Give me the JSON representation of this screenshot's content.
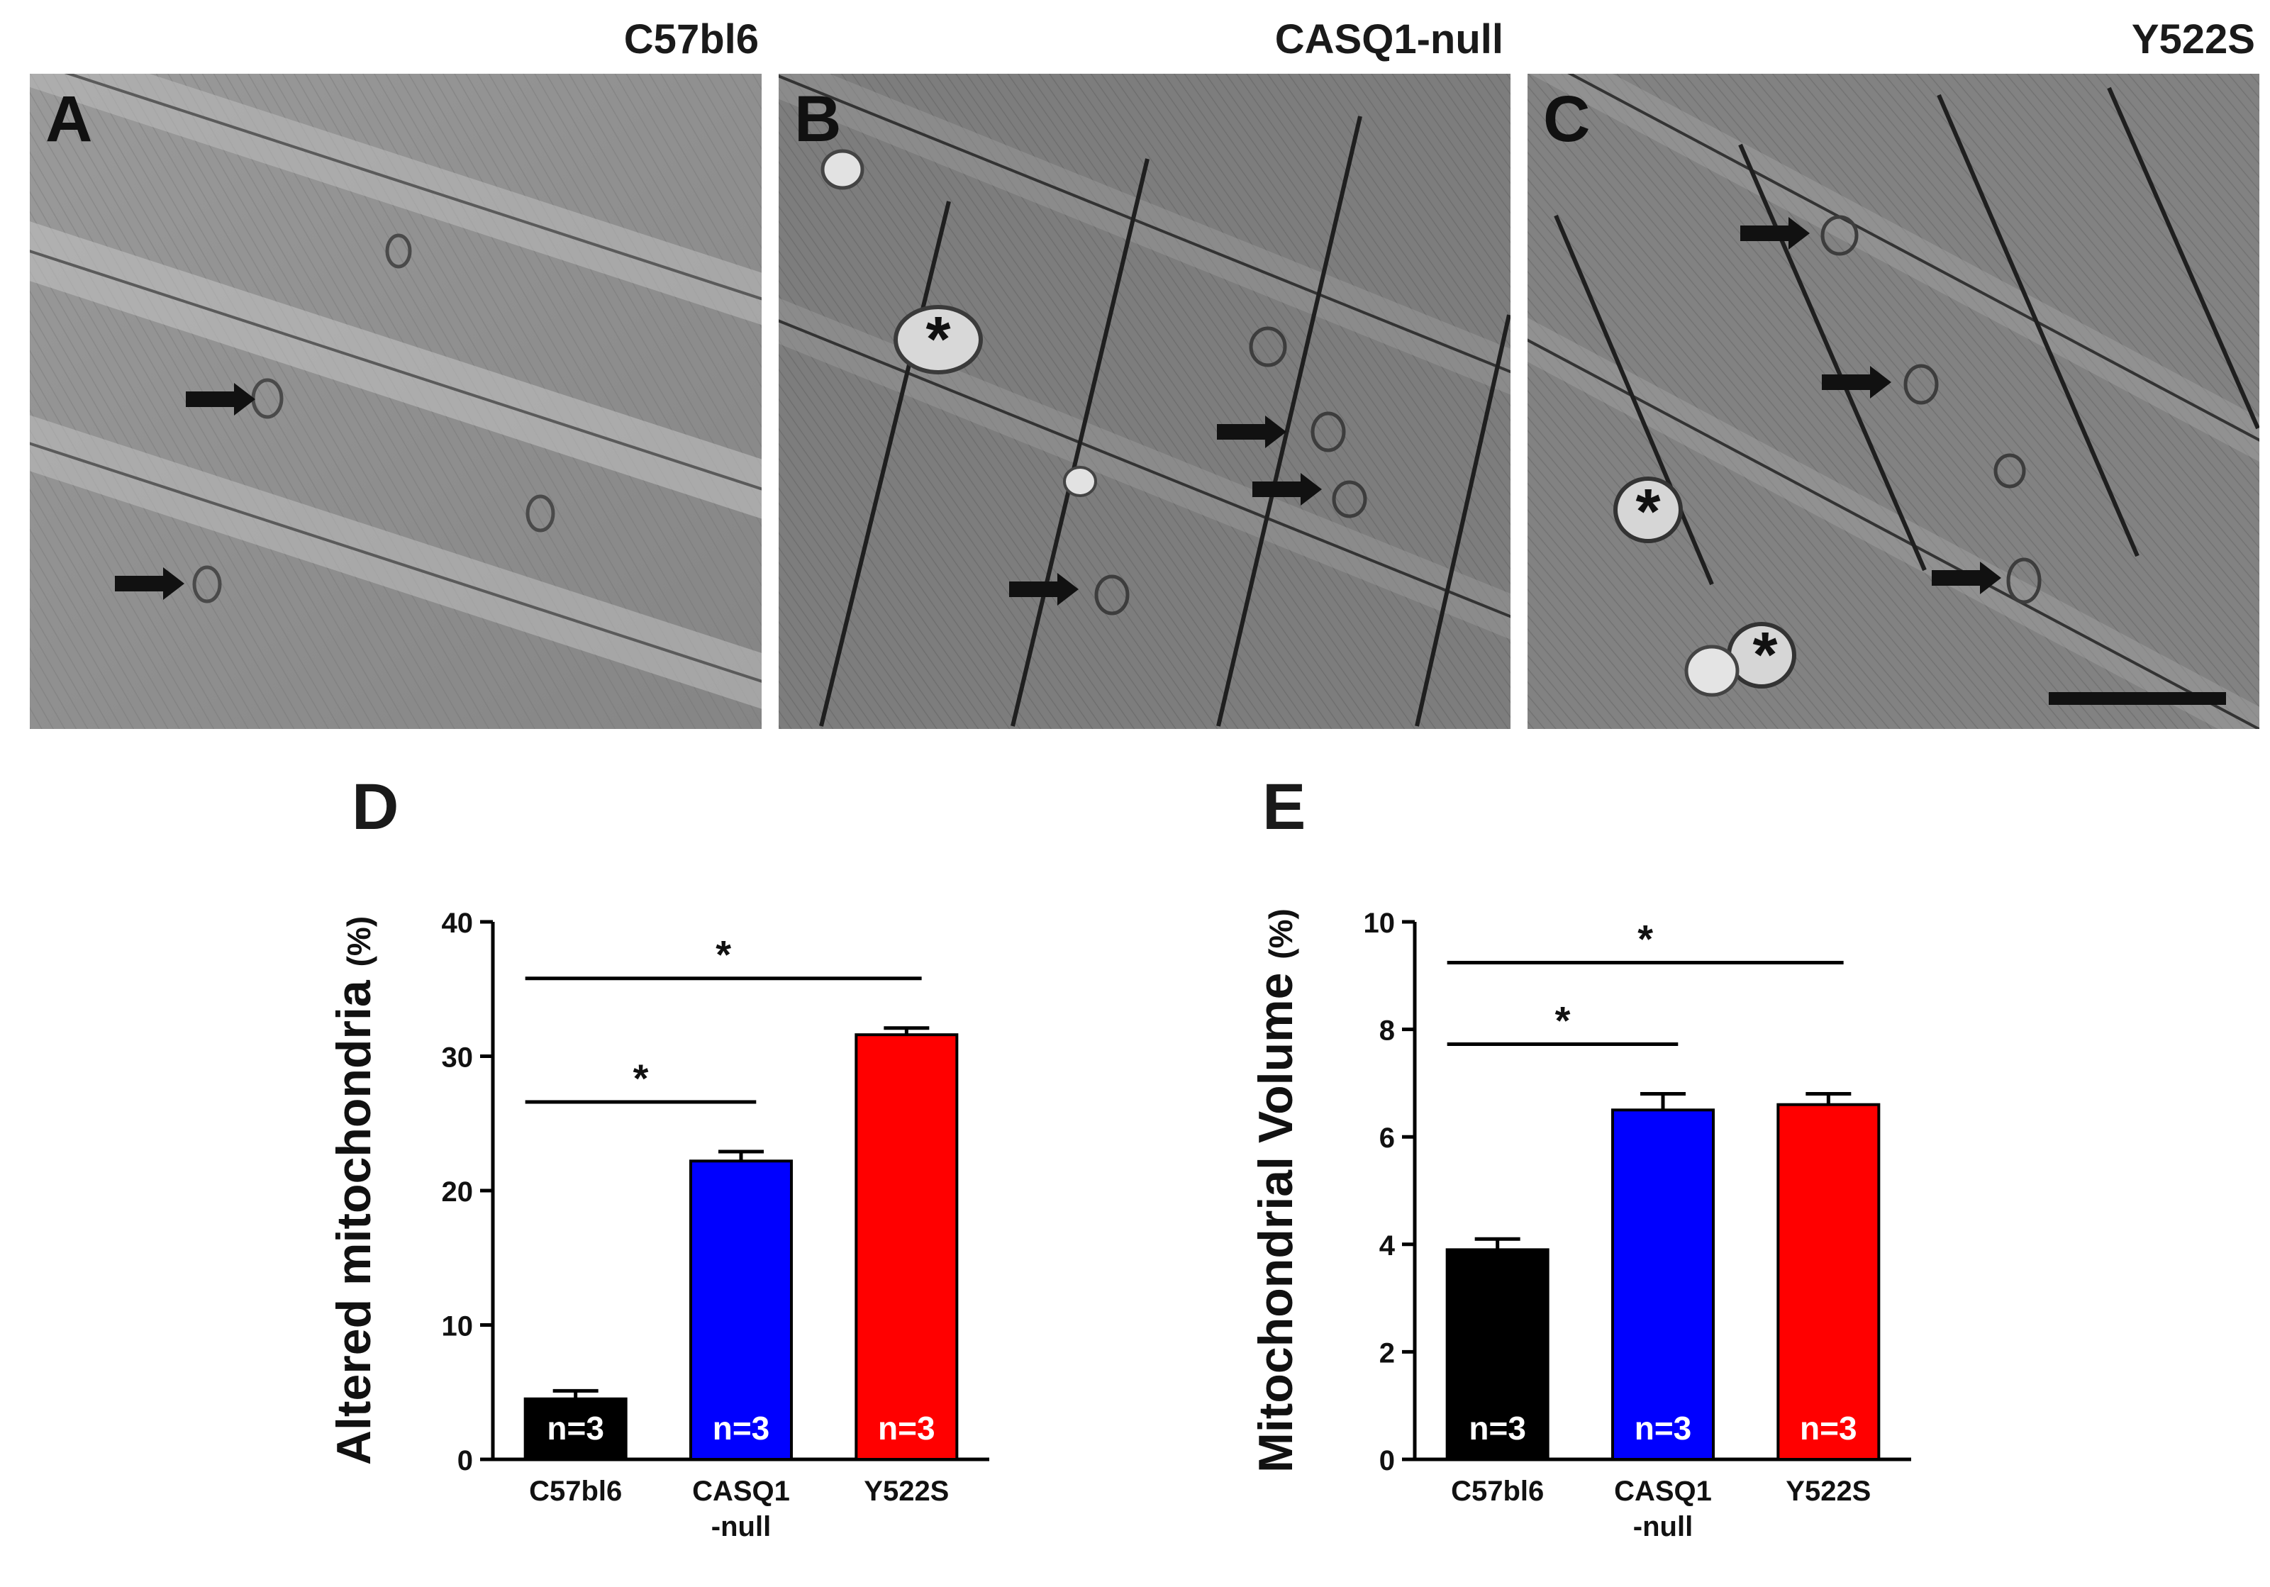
{
  "panels": {
    "A": {
      "letter": "A",
      "title": "C57bl6"
    },
    "B": {
      "letter": "B",
      "title": "CASQ1-null"
    },
    "C": {
      "letter": "C",
      "title": "Y522S"
    },
    "D": {
      "letter": "D"
    },
    "E": {
      "letter": "E"
    }
  },
  "micrograph_marks": {
    "asterisk": "*"
  },
  "colors": {
    "c57bl6": "#000000",
    "casq1": "#0000ff",
    "y522s": "#ff0000",
    "axis": "#000000"
  },
  "chart_data": [
    {
      "type": "bar",
      "panel": "D",
      "ylabel_main": "Altered mitochondria",
      "ylabel_unit": "(%)",
      "ylim": [
        0,
        40
      ],
      "yticks": [
        "0",
        "10",
        "20",
        "30",
        "40"
      ],
      "categories": [
        {
          "line1": "C57bl6",
          "line2": ""
        },
        {
          "line1": "CASQ1",
          "line2": "-null"
        },
        {
          "line1": "Y522S",
          "line2": ""
        }
      ],
      "values": [
        4.5,
        22.2,
        31.6
      ],
      "errors": [
        0.6,
        0.7,
        0.5
      ],
      "bar_labels": [
        "n=3",
        "n=3",
        "n=3"
      ],
      "significance": [
        {
          "from": 0,
          "to": 1,
          "label": "*"
        },
        {
          "from": 0,
          "to": 2,
          "label": "*"
        }
      ]
    },
    {
      "type": "bar",
      "panel": "E",
      "ylabel_main": "Mitochondrial Volume",
      "ylabel_unit": "(%)",
      "ylim": [
        0,
        10
      ],
      "yticks": [
        "0",
        "2",
        "4",
        "6",
        "8",
        "10"
      ],
      "categories": [
        {
          "line1": "C57bl6",
          "line2": ""
        },
        {
          "line1": "CASQ1",
          "line2": "-null"
        },
        {
          "line1": "Y522S",
          "line2": ""
        }
      ],
      "values": [
        3.9,
        6.5,
        6.6
      ],
      "errors": [
        0.2,
        0.3,
        0.2
      ],
      "bar_labels": [
        "n=3",
        "n=3",
        "n=3"
      ],
      "significance": [
        {
          "from": 0,
          "to": 1,
          "label": "*"
        },
        {
          "from": 0,
          "to": 2,
          "label": "*"
        }
      ]
    }
  ]
}
